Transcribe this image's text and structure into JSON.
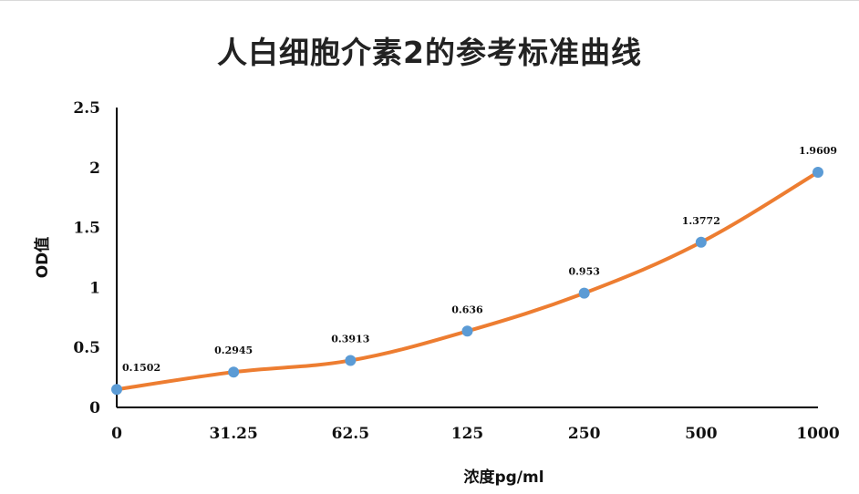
{
  "chart_data": {
    "type": "line",
    "title": "人白细胞介素2的参考标准曲线",
    "xlabel": "浓度pg/ml",
    "ylabel": "OD值",
    "categories": [
      "0",
      "31.25",
      "62.5",
      "125",
      "250",
      "500",
      "1000"
    ],
    "series": [
      {
        "values": [
          0.1502,
          0.2945,
          0.3913,
          0.636,
          0.953,
          1.3772,
          1.9609
        ],
        "data_labels": [
          "0.1502",
          "0.2945",
          "0.3913",
          "0.636",
          "0.953",
          "1.3772",
          "1.9609"
        ]
      }
    ],
    "ylim": [
      0,
      2.5
    ],
    "yticks": [
      "0",
      "0.5",
      "1",
      "1.5",
      "2",
      "2.5"
    ],
    "grid": false,
    "legend": "none",
    "line_color": "#ED7D31",
    "marker_color": "#5B9BD5",
    "axis_color": "#000000"
  }
}
